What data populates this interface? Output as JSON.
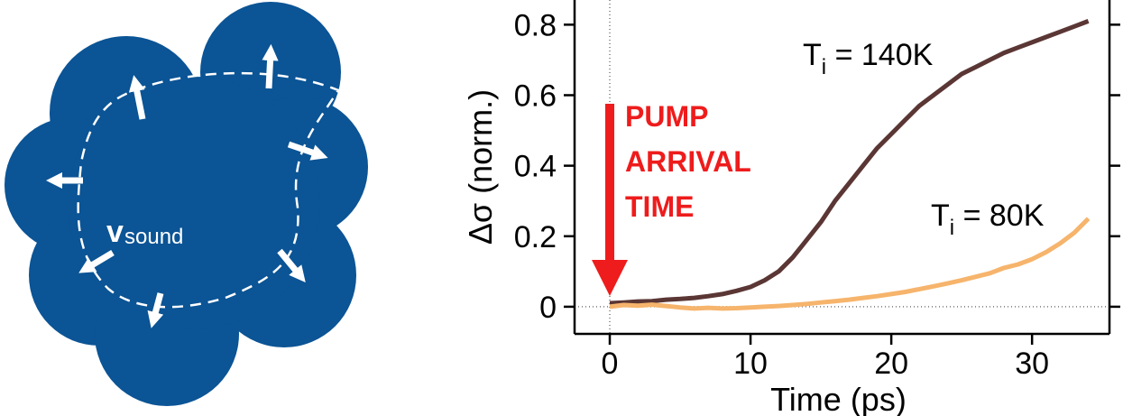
{
  "diagram": {
    "label": "v",
    "label_sub": "sound"
  },
  "chart_data": {
    "type": "line",
    "x_label": "Time (ps)",
    "y_label": "Δσ (norm.)",
    "x": [
      0,
      1,
      2,
      3,
      4,
      5,
      6,
      7,
      8,
      9,
      10,
      11,
      12,
      13,
      14,
      15,
      16,
      17,
      18,
      19,
      20,
      21,
      22,
      23,
      24,
      25,
      26,
      27,
      28,
      29,
      30,
      31,
      32,
      33,
      34
    ],
    "series": [
      {
        "label": {
          "main": "T",
          "sub": "i",
          "rest": " = 140K"
        },
        "color": "#5a3634",
        "values": [
          0.01,
          0.012,
          0.015,
          0.016,
          0.02,
          0.022,
          0.025,
          0.03,
          0.036,
          0.045,
          0.056,
          0.075,
          0.1,
          0.14,
          0.19,
          0.24,
          0.3,
          0.35,
          0.4,
          0.45,
          0.49,
          0.53,
          0.57,
          0.6,
          0.63,
          0.66,
          0.68,
          0.7,
          0.72,
          0.735,
          0.75,
          0.765,
          0.78,
          0.795,
          0.81
        ]
      },
      {
        "label": {
          "main": "T",
          "sub": "i",
          "rest": " = 80K"
        },
        "color": "#f6b46c",
        "values": [
          0,
          0.005,
          0.003,
          0.006,
          0.002,
          -0.002,
          -0.005,
          -0.003,
          -0.005,
          -0.004,
          -0.002,
          0,
          0.002,
          0.005,
          0.008,
          0.012,
          0.016,
          0.02,
          0.025,
          0.03,
          0.036,
          0.042,
          0.05,
          0.058,
          0.066,
          0.075,
          0.085,
          0.095,
          0.11,
          0.12,
          0.135,
          0.155,
          0.18,
          0.21,
          0.25
        ]
      }
    ],
    "annotation": {
      "lines": [
        "PUMP",
        "ARRIVAL",
        "TIME"
      ],
      "color": "#ee1c1c"
    },
    "xlim": [
      -2.5,
      35.5
    ],
    "ylim": [
      -0.077,
      0.87
    ],
    "xticks": [
      0,
      10,
      20,
      30
    ],
    "yticks": [
      0,
      0.2,
      0.4,
      0.6,
      0.8
    ],
    "zero_lines": true
  }
}
